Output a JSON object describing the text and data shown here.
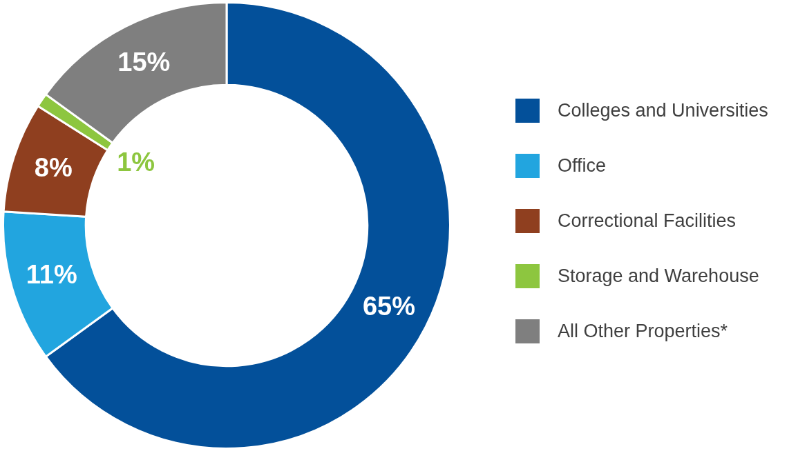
{
  "chart_data": {
    "type": "donut",
    "categories": [
      "Colleges and Universities",
      "Office",
      "Correctional Facilities",
      "Storage and Warehouse",
      "All Other Properties*"
    ],
    "values": [
      65,
      11,
      8,
      1,
      15
    ],
    "colors": [
      "#03509a",
      "#22a5df",
      "#8f3f1f",
      "#8dc63f",
      "#7f7f7f"
    ],
    "value_labels": [
      "65%",
      "11%",
      "8%",
      "1%",
      "15%"
    ],
    "legend": "right"
  }
}
